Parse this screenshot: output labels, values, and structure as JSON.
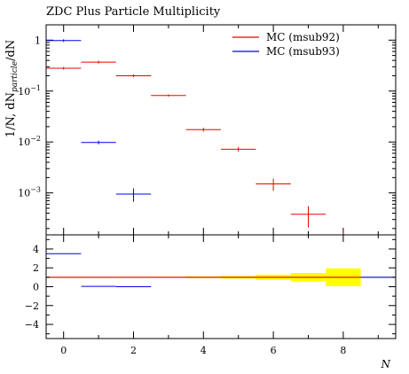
{
  "chart_data": [
    {
      "type": "scatter",
      "title": "ZDC Plus Particle Multiplicity",
      "ylabel_parts": {
        "prefix": "1/N, dN",
        "subscript": "particle",
        "suffix": "/dN"
      },
      "xlim": [
        -0.5,
        9.5
      ],
      "ylim": [
        0.00015,
        2.0
      ],
      "yscale": "log",
      "y_ticks": [
        {
          "value": 1,
          "label": "1"
        },
        {
          "value": 0.1,
          "label": "10",
          "exp": "−1"
        },
        {
          "value": 0.01,
          "label": "10",
          "exp": "−2"
        },
        {
          "value": 0.001,
          "label": "10",
          "exp": "−3"
        }
      ],
      "legend": {
        "placement": "top-right"
      },
      "series": [
        {
          "name": "MC (msub92)",
          "color": "#ee0000",
          "points": [
            {
              "x": 0,
              "y": 0.28,
              "yerr": 0
            },
            {
              "x": 1,
              "y": 0.37,
              "yerr": 0
            },
            {
              "x": 2,
              "y": 0.2,
              "yerr": 0
            },
            {
              "x": 3,
              "y": 0.082,
              "yerr": 0.004
            },
            {
              "x": 4,
              "y": 0.0175,
              "yerr": 0.0015
            },
            {
              "x": 5,
              "y": 0.0072,
              "yerr": 0.0008
            },
            {
              "x": 6,
              "y": 0.0015,
              "yerr": 0.0004
            },
            {
              "x": 7,
              "y": 0.00038,
              "yerr": 0.00017
            },
            {
              "x": 8,
              "y": 0.00015,
              "yerr": 2e-05
            }
          ]
        },
        {
          "name": "MC (msub93)",
          "color": "#0000ee",
          "points": [
            {
              "x": 0,
              "y": 0.98,
              "yerr": 0
            },
            {
              "x": 1,
              "y": 0.0098,
              "yerr": 0.0008
            },
            {
              "x": 2,
              "y": 0.00095,
              "yerr": 0.00028
            }
          ]
        }
      ]
    },
    {
      "type": "line",
      "xlabel": "N",
      "xlim": [
        -0.5,
        9.5
      ],
      "ylim": [
        -5.5,
        5.5
      ],
      "x_ticks": [
        {
          "value": 0,
          "label": "0"
        },
        {
          "value": 2,
          "label": "2"
        },
        {
          "value": 4,
          "label": "4"
        },
        {
          "value": 6,
          "label": "6"
        },
        {
          "value": 8,
          "label": "8"
        }
      ],
      "y_ticks": [
        {
          "value": 4,
          "label": "4"
        },
        {
          "value": 2,
          "label": "2"
        },
        {
          "value": 0,
          "label": "0"
        },
        {
          "value": -2,
          "label": "−2"
        },
        {
          "value": -4,
          "label": "−4"
        }
      ],
      "reference_line": {
        "y": 1,
        "color": "#555500"
      },
      "uncertainty_band": {
        "color": "#ffff00",
        "bins": [
          {
            "x": 0,
            "lo": 0.97,
            "hi": 1.03
          },
          {
            "x": 1,
            "lo": 0.98,
            "hi": 1.02
          },
          {
            "x": 2,
            "lo": 0.98,
            "hi": 1.02
          },
          {
            "x": 3,
            "lo": 0.94,
            "hi": 1.06
          },
          {
            "x": 4,
            "lo": 0.9,
            "hi": 1.1
          },
          {
            "x": 5,
            "lo": 0.86,
            "hi": 1.14
          },
          {
            "x": 6,
            "lo": 0.72,
            "hi": 1.28
          },
          {
            "x": 7,
            "lo": 0.55,
            "hi": 1.45
          },
          {
            "x": 8,
            "lo": 0.05,
            "hi": 1.95
          }
        ]
      },
      "series": [
        {
          "name": "MC (msub92)",
          "color": "#ee0000",
          "values": [
            {
              "x": 0,
              "y": 1
            },
            {
              "x": 1,
              "y": 1
            },
            {
              "x": 2,
              "y": 1
            },
            {
              "x": 3,
              "y": 1
            },
            {
              "x": 4,
              "y": 1
            },
            {
              "x": 5,
              "y": 1
            },
            {
              "x": 6,
              "y": 1
            },
            {
              "x": 7,
              "y": 1
            },
            {
              "x": 8,
              "y": 1
            }
          ]
        },
        {
          "name": "MC (msub93)",
          "color": "#0000ee",
          "values": [
            {
              "x": 0,
              "y": 3.5
            },
            {
              "x": 1,
              "y": 0.03
            },
            {
              "x": 2,
              "y": 0.0
            },
            {
              "x": 9,
              "y": 1
            }
          ]
        }
      ]
    }
  ]
}
